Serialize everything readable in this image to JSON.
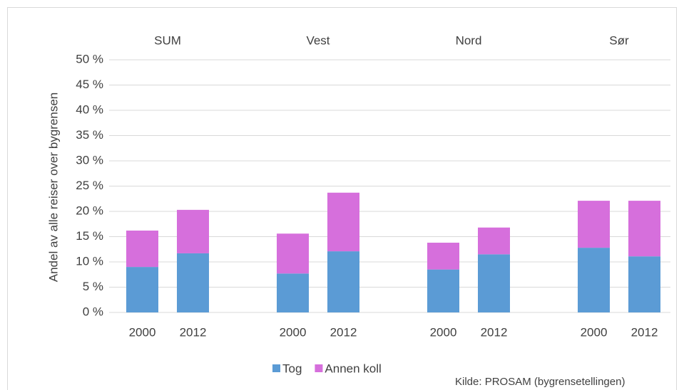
{
  "chart_data": {
    "type": "stacked_bar",
    "y_label": "Andel av alle reiser over bygrensen",
    "groups": [
      "SUM",
      "Vest",
      "Nord",
      "Sør"
    ],
    "categories": [
      "2000",
      "2012",
      "2000",
      "2012",
      "2000",
      "2012",
      "2000",
      "2012"
    ],
    "series": [
      {
        "name": "Tog",
        "color": "#5b9bd5",
        "values": [
          9.0,
          11.7,
          7.7,
          12.1,
          8.5,
          11.5,
          12.8,
          11.1
        ]
      },
      {
        "name": "Annen koll",
        "color": "#d66fdc",
        "values": [
          7.2,
          8.6,
          7.9,
          11.6,
          5.3,
          5.3,
          9.3,
          11.0
        ]
      }
    ],
    "ylim": [
      0,
      50
    ],
    "yticks": [
      {
        "value": 0,
        "label": "0 %"
      },
      {
        "value": 5,
        "label": "5 %"
      },
      {
        "value": 10,
        "label": "10 %"
      },
      {
        "value": 15,
        "label": "15 %"
      },
      {
        "value": 20,
        "label": "20 %"
      },
      {
        "value": 25,
        "label": "25 %"
      },
      {
        "value": 30,
        "label": "30 %"
      },
      {
        "value": 35,
        "label": "35 %"
      },
      {
        "value": 40,
        "label": "40 %"
      },
      {
        "value": 45,
        "label": "45 %"
      },
      {
        "value": 50,
        "label": "50 %"
      }
    ],
    "grid": true,
    "legend": "bottom",
    "source": "Kilde: PROSAM (bygrensetellingen)"
  }
}
